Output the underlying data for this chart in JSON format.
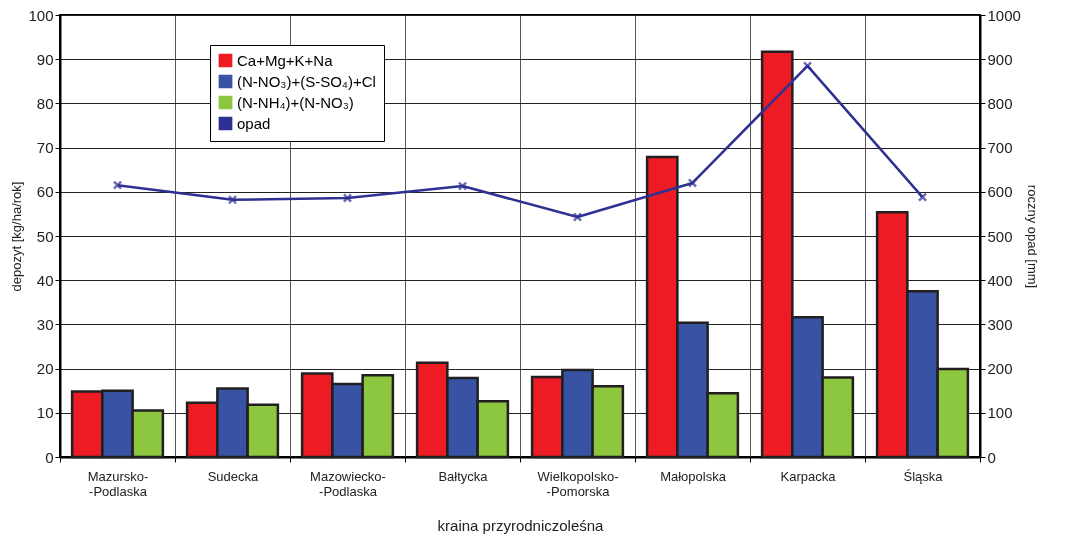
{
  "chart_data": {
    "type": "bar",
    "xlabel": "kraina przyrodniczoleśna",
    "ylabel": "depozyt [kg/ha/rok]",
    "y2label": "roczny opad [mm]",
    "categories": [
      "Mazursko-\n-Podlaska",
      "Sudecka",
      "Mazowiecko-\n-Podlaska",
      "Bałtycka",
      "Wielkopolsko-\n-Pomorska",
      "Małopolska",
      "Karpacka",
      "Śląska"
    ],
    "series": [
      {
        "name": "Ca+Mg+K+Na",
        "color": "#ed1c24",
        "values": [
          14.8,
          12.3,
          18.9,
          21.3,
          18.1,
          67.9,
          91.7,
          55.4
        ]
      },
      {
        "name": "(N-NO₃)+(S-SO₄)+Cl",
        "color": "#3953a4",
        "values": [
          15.0,
          15.5,
          16.5,
          17.9,
          19.7,
          30.4,
          31.6,
          37.5
        ]
      },
      {
        "name": "(N-NH₄)+(N-NO₃)",
        "color": "#8dc63f",
        "values": [
          10.5,
          11.8,
          18.5,
          12.6,
          16.0,
          14.4,
          18.0,
          19.9
        ]
      },
      {
        "name": "opad",
        "type": "line",
        "axis": "y2",
        "color": "#2e3192",
        "values": [
          615,
          582,
          586,
          613,
          543,
          620,
          885,
          588
        ]
      }
    ],
    "ylim": [
      0,
      100
    ],
    "yticks": [
      0,
      10,
      20,
      30,
      40,
      50,
      60,
      70,
      80,
      90,
      100
    ],
    "y2lim": [
      0,
      1000
    ],
    "y2ticks": [
      0,
      100,
      200,
      300,
      400,
      500,
      600,
      700,
      800,
      900,
      1000
    ],
    "grid": true,
    "legend": "top left",
    "marker": "cross",
    "line_style": "solid"
  }
}
